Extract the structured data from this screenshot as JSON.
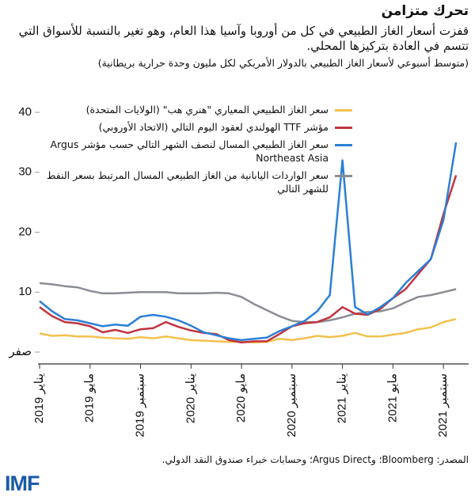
{
  "chart_data": {
    "type": "line",
    "title": "تحرك متزامن",
    "subtitle": "قفزت أسعار الغاز الطبيعي في كل من أوروبا وآسيا هذا العام، وهو تغير بالنسبة للأسواق التي تتسم في العادة بتركيزها المحلي.",
    "note": "(متوسط أسبوعي لأسعار الغاز الطبيعي بالدولار الأمريكي لكل مليون وحدة حرارية بريطانية)",
    "source": "المصدر: Bloomberg؛ وArgus Direct؛ وحسابات خبراء صندوق النقد الدولي.",
    "logo": "IMF",
    "x": [
      "2019-01",
      "2019-02",
      "2019-03",
      "2019-04",
      "2019-05",
      "2019-06",
      "2019-07",
      "2019-08",
      "2019-09",
      "2019-10",
      "2019-11",
      "2019-12",
      "2020-01",
      "2020-02",
      "2020-03",
      "2020-04",
      "2020-05",
      "2020-06",
      "2020-07",
      "2020-08",
      "2020-09",
      "2020-10",
      "2020-11",
      "2020-12",
      "2021-01",
      "2021-02",
      "2021-03",
      "2021-04",
      "2021-05",
      "2021-06",
      "2021-07",
      "2021-08",
      "2021-09",
      "2021-10"
    ],
    "xlim": [
      "2019-01",
      "2021-11"
    ],
    "xticks": [
      {
        "value": "2019-01",
        "label": "يناير 2019"
      },
      {
        "value": "2019-05",
        "label": "مايو 2019"
      },
      {
        "value": "2019-09",
        "label": "سبتمبر 2019"
      },
      {
        "value": "2020-01",
        "label": "يناير 2020"
      },
      {
        "value": "2020-05",
        "label": "مايو 2020"
      },
      {
        "value": "2020-09",
        "label": "سبتمبر 2020"
      },
      {
        "value": "2021-01",
        "label": "يناير 2021"
      },
      {
        "value": "2021-05",
        "label": "مايو 2021"
      },
      {
        "value": "2021-09",
        "label": "سبتمبر 2021"
      }
    ],
    "ylim": [
      0,
      40
    ],
    "yticks": [
      {
        "value": 0,
        "label": "صفر"
      },
      10,
      20,
      30,
      40
    ],
    "series": [
      {
        "name": "سعر الغاز الطبيعي المعياري \"هنري هب\" (الولايات المتحدة)",
        "color": "#f2c14e",
        "values": [
          3.1,
          2.7,
          2.8,
          2.6,
          2.6,
          2.4,
          2.3,
          2.2,
          2.5,
          2.3,
          2.6,
          2.3,
          2.0,
          1.9,
          1.8,
          1.7,
          1.7,
          1.6,
          1.7,
          2.2,
          2.0,
          2.3,
          2.7,
          2.5,
          2.7,
          3.2,
          2.6,
          2.6,
          2.9,
          3.2,
          3.8,
          4.1,
          5.0,
          5.5
        ]
      },
      {
        "name": "مؤشر TTF الهولندي لعقود اليوم التالي (الاتحاد الأوروبي)",
        "color": "#c0343f",
        "values": [
          7.5,
          6.0,
          5.0,
          4.8,
          4.3,
          3.3,
          3.7,
          3.2,
          3.8,
          4.0,
          5.0,
          4.2,
          3.6,
          3.2,
          3.0,
          2.0,
          1.6,
          1.8,
          1.8,
          3.0,
          4.3,
          4.8,
          5.0,
          5.8,
          7.5,
          6.4,
          6.2,
          7.2,
          9.0,
          10.5,
          13.0,
          15.5,
          23.0,
          29.5
        ]
      },
      {
        "name": "سعر الغاز الطبيعي المسال لنصف الشهر التالي حسب مؤشر Argus Northeast Asia",
        "color": "#2b7fd6",
        "values": [
          8.5,
          6.8,
          5.5,
          5.3,
          4.8,
          4.3,
          4.6,
          4.4,
          5.9,
          6.2,
          5.9,
          5.3,
          4.4,
          3.3,
          2.8,
          2.3,
          2.0,
          2.2,
          2.4,
          3.5,
          4.3,
          5.2,
          6.8,
          9.5,
          32.0,
          7.5,
          6.3,
          7.5,
          9.0,
          11.5,
          13.5,
          15.5,
          22.0,
          35.0
        ]
      },
      {
        "name": "سعر الواردات اليابانية من الغاز الطبيعي المسال المرتبط بسعر النفط للشهر التالي",
        "color": "#8a8d94",
        "values": [
          11.5,
          11.3,
          11.0,
          10.8,
          10.2,
          9.8,
          9.8,
          9.9,
          10.0,
          10.0,
          10.0,
          9.8,
          9.8,
          9.8,
          9.9,
          9.8,
          9.2,
          8.0,
          7.0,
          6.0,
          5.2,
          5.0,
          5.0,
          5.3,
          5.8,
          6.4,
          6.7,
          6.8,
          7.3,
          8.3,
          9.2,
          9.5,
          10.0,
          10.5
        ]
      }
    ]
  }
}
